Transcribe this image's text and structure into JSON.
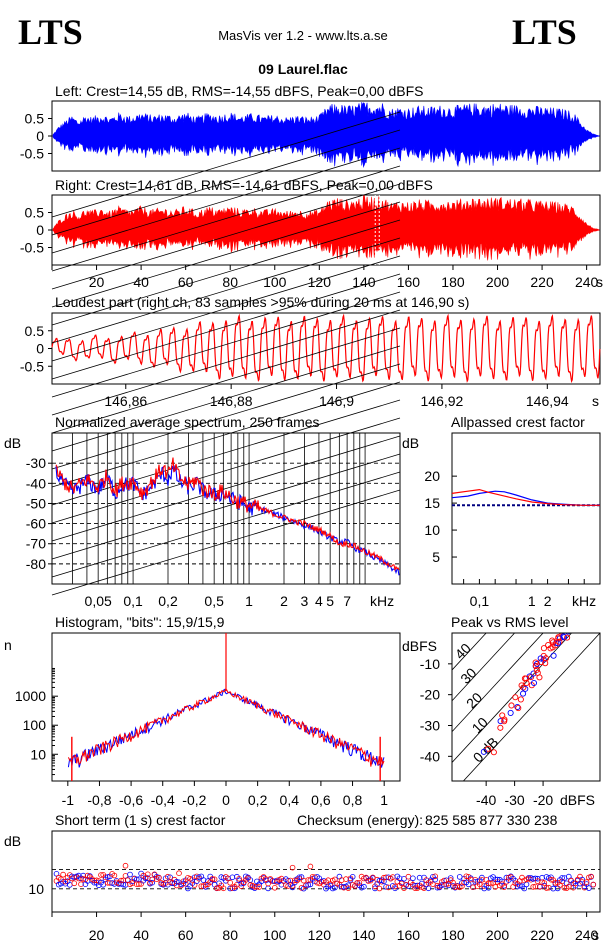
{
  "header": {
    "logo_left": "LTS",
    "logo_right": "LTS",
    "subtitle": "MasVis ver 1.2 - www.lts.a.se",
    "filename": "09 Laurel.flac"
  },
  "colors": {
    "left": "#0000ff",
    "right": "#ff0000",
    "background": "#ffffff",
    "axis": "#000000"
  },
  "chart_data": [
    {
      "id": "left",
      "type": "area",
      "title": "Left: Crest=14,55 dB, RMS=-14,55 dBFS, Peak=0,00 dBFS",
      "yticks": [
        "0.5",
        "0",
        "-0.5"
      ],
      "ylim": [
        -1,
        1
      ],
      "xlim": [
        0,
        246
      ],
      "envelope": [
        [
          0,
          0.0
        ],
        [
          3,
          0.28
        ],
        [
          6,
          0.45
        ],
        [
          9,
          0.6
        ],
        [
          12,
          0.45
        ],
        [
          15,
          0.62
        ],
        [
          18,
          0.55
        ],
        [
          22,
          0.66
        ],
        [
          26,
          0.55
        ],
        [
          30,
          0.68
        ],
        [
          35,
          0.58
        ],
        [
          40,
          0.7
        ],
        [
          45,
          0.6
        ],
        [
          50,
          0.66
        ],
        [
          55,
          0.58
        ],
        [
          60,
          0.7
        ],
        [
          65,
          0.55
        ],
        [
          70,
          0.68
        ],
        [
          75,
          0.62
        ],
        [
          80,
          0.7
        ],
        [
          85,
          0.6
        ],
        [
          90,
          0.66
        ],
        [
          95,
          0.58
        ],
        [
          100,
          0.62
        ],
        [
          105,
          0.55
        ],
        [
          110,
          0.6
        ],
        [
          115,
          0.55
        ],
        [
          120,
          0.6
        ],
        [
          124,
          0.9
        ],
        [
          128,
          0.95
        ],
        [
          132,
          0.88
        ],
        [
          136,
          0.92
        ],
        [
          139,
          0.98
        ],
        [
          142,
          1.0
        ],
        [
          145,
          0.98
        ],
        [
          148,
          1.0
        ],
        [
          152,
          0.8
        ],
        [
          156,
          0.86
        ],
        [
          160,
          0.82
        ],
        [
          165,
          0.88
        ],
        [
          170,
          0.85
        ],
        [
          175,
          0.9
        ],
        [
          180,
          0.86
        ],
        [
          185,
          0.92
        ],
        [
          190,
          0.95
        ],
        [
          195,
          0.93
        ],
        [
          200,
          0.96
        ],
        [
          205,
          0.92
        ],
        [
          210,
          0.9
        ],
        [
          215,
          0.88
        ],
        [
          220,
          0.85
        ],
        [
          225,
          0.82
        ],
        [
          230,
          0.78
        ],
        [
          234,
          0.7
        ],
        [
          237,
          0.45
        ],
        [
          240,
          0.2
        ],
        [
          243,
          0.06
        ],
        [
          246,
          0.0
        ]
      ]
    },
    {
      "id": "right",
      "type": "area",
      "title": "Right: Crest=14,61 dB, RMS=-14,61 dBFS, Peak=0,00 dBFS",
      "yticks": [
        "0.5",
        "0",
        "-0.5"
      ],
      "ylim": [
        -1,
        1
      ],
      "xlim": [
        0,
        246
      ],
      "xticks": [
        "20",
        "40",
        "60",
        "80",
        "100",
        "120",
        "140",
        "160",
        "180",
        "200",
        "220",
        "240"
      ],
      "x_unit": "s",
      "marker_time": 146.9,
      "envelope": [
        [
          0,
          0.0
        ],
        [
          3,
          0.28
        ],
        [
          6,
          0.45
        ],
        [
          9,
          0.6
        ],
        [
          12,
          0.45
        ],
        [
          15,
          0.62
        ],
        [
          18,
          0.55
        ],
        [
          22,
          0.66
        ],
        [
          26,
          0.55
        ],
        [
          30,
          0.68
        ],
        [
          35,
          0.58
        ],
        [
          40,
          0.7
        ],
        [
          45,
          0.6
        ],
        [
          50,
          0.66
        ],
        [
          55,
          0.58
        ],
        [
          60,
          0.7
        ],
        [
          65,
          0.55
        ],
        [
          70,
          0.68
        ],
        [
          75,
          0.62
        ],
        [
          80,
          0.7
        ],
        [
          85,
          0.6
        ],
        [
          90,
          0.66
        ],
        [
          95,
          0.58
        ],
        [
          100,
          0.62
        ],
        [
          105,
          0.55
        ],
        [
          110,
          0.6
        ],
        [
          115,
          0.55
        ],
        [
          120,
          0.6
        ],
        [
          124,
          0.9
        ],
        [
          128,
          0.95
        ],
        [
          132,
          0.88
        ],
        [
          136,
          0.92
        ],
        [
          139,
          0.98
        ],
        [
          142,
          1.0
        ],
        [
          145,
          0.98
        ],
        [
          148,
          1.0
        ],
        [
          152,
          0.8
        ],
        [
          156,
          0.86
        ],
        [
          160,
          0.82
        ],
        [
          165,
          0.88
        ],
        [
          170,
          0.85
        ],
        [
          175,
          0.9
        ],
        [
          180,
          0.86
        ],
        [
          185,
          0.92
        ],
        [
          190,
          0.95
        ],
        [
          195,
          0.93
        ],
        [
          200,
          0.96
        ],
        [
          205,
          0.92
        ],
        [
          210,
          0.9
        ],
        [
          215,
          0.88
        ],
        [
          220,
          0.85
        ],
        [
          225,
          0.82
        ],
        [
          230,
          0.78
        ],
        [
          234,
          0.7
        ],
        [
          237,
          0.45
        ],
        [
          240,
          0.2
        ],
        [
          243,
          0.06
        ],
        [
          246,
          0.0
        ]
      ]
    },
    {
      "id": "loudest",
      "type": "line",
      "title": "Loudest part (right ch, 83 samples >95% during 20 ms at 146,90 s)",
      "yticks": [
        "0.5",
        "0",
        "-0.5"
      ],
      "ylim": [
        -1,
        1
      ],
      "xlim": [
        146.846,
        146.95
      ],
      "xticks": [
        "146,86",
        "146,88",
        "146,9",
        "146,92",
        "146,94"
      ],
      "xtick_values": [
        146.86,
        146.88,
        146.9,
        146.92,
        146.94
      ],
      "x_unit": "s",
      "amplitude": [
        [
          146.846,
          0.25
        ],
        [
          146.86,
          0.4
        ],
        [
          146.872,
          0.7
        ],
        [
          146.88,
          0.95
        ],
        [
          146.95,
          0.95
        ]
      ],
      "cycles": 42
    },
    {
      "id": "spectrum",
      "type": "line",
      "title": "Normalized average spectrum, 250 frames",
      "ylabel": "dB",
      "yticks": [
        "-30",
        "-40",
        "-50",
        "-60",
        "-70",
        "-80"
      ],
      "ytick_values": [
        -30,
        -40,
        -50,
        -60,
        -70,
        -80
      ],
      "ylim": [
        -90,
        -15
      ],
      "xscale": "log",
      "xlim": [
        0.02,
        20
      ],
      "xticks": [
        "0,05",
        "0,1",
        "0,2",
        "0,5",
        "1",
        "2",
        "3",
        "4",
        "5",
        "7"
      ],
      "xtick_values": [
        0.05,
        0.1,
        0.2,
        0.5,
        1,
        2,
        3,
        4,
        5,
        7
      ],
      "x_unit": "kHz",
      "series": [
        {
          "name": "",
          "color": "#0000ff",
          "points": [
            [
              0.02,
              -32
            ],
            [
              0.025,
              -40
            ],
            [
              0.03,
              -44
            ],
            [
              0.04,
              -39
            ],
            [
              0.05,
              -43
            ],
            [
              0.06,
              -37
            ],
            [
              0.07,
              -45
            ],
            [
              0.08,
              -41
            ],
            [
              0.1,
              -40
            ],
            [
              0.12,
              -46
            ],
            [
              0.15,
              -40
            ],
            [
              0.18,
              -35
            ],
            [
              0.2,
              -38
            ],
            [
              0.22,
              -33
            ],
            [
              0.25,
              -39
            ],
            [
              0.3,
              -42
            ],
            [
              0.35,
              -40
            ],
            [
              0.4,
              -44
            ],
            [
              0.5,
              -46
            ],
            [
              0.6,
              -45
            ],
            [
              0.7,
              -48
            ],
            [
              0.8,
              -49
            ],
            [
              1,
              -52
            ],
            [
              1.3,
              -53
            ],
            [
              1.6,
              -55
            ],
            [
              2,
              -57
            ],
            [
              2.5,
              -59
            ],
            [
              3,
              -61
            ],
            [
              3.5,
              -62
            ],
            [
              4,
              -64
            ],
            [
              5,
              -67
            ],
            [
              6,
              -69
            ],
            [
              7,
              -69
            ],
            [
              8,
              -72
            ],
            [
              10,
              -74
            ],
            [
              12,
              -77
            ],
            [
              15,
              -80
            ],
            [
              20,
              -85
            ]
          ]
        },
        {
          "name": "",
          "color": "#ff0000",
          "points": [
            [
              0.02,
              -31
            ],
            [
              0.025,
              -39
            ],
            [
              0.03,
              -43
            ],
            [
              0.04,
              -38
            ],
            [
              0.05,
              -42
            ],
            [
              0.06,
              -36
            ],
            [
              0.07,
              -44
            ],
            [
              0.08,
              -40
            ],
            [
              0.1,
              -39
            ],
            [
              0.12,
              -45
            ],
            [
              0.15,
              -38
            ],
            [
              0.18,
              -32
            ],
            [
              0.2,
              -36
            ],
            [
              0.22,
              -31
            ],
            [
              0.25,
              -37
            ],
            [
              0.3,
              -41
            ],
            [
              0.35,
              -38
            ],
            [
              0.4,
              -43
            ],
            [
              0.5,
              -45
            ],
            [
              0.6,
              -44
            ],
            [
              0.7,
              -47
            ],
            [
              0.8,
              -49
            ],
            [
              1,
              -51
            ],
            [
              1.3,
              -53
            ],
            [
              1.6,
              -55
            ],
            [
              2,
              -57
            ],
            [
              2.5,
              -59
            ],
            [
              3,
              -60
            ],
            [
              3.5,
              -62
            ],
            [
              4,
              -63
            ],
            [
              5,
              -66
            ],
            [
              6,
              -70
            ],
            [
              7,
              -70
            ],
            [
              8,
              -71
            ],
            [
              10,
              -74
            ],
            [
              12,
              -76
            ],
            [
              15,
              -79
            ],
            [
              20,
              -84
            ]
          ]
        }
      ]
    },
    {
      "id": "crestfactor",
      "type": "line",
      "title": "Allpassed crest factor",
      "ylabel": "dB",
      "yticks": [
        "20",
        "15",
        "10",
        "5"
      ],
      "ytick_values": [
        20,
        15,
        10,
        5
      ],
      "ylim": [
        0,
        28
      ],
      "xscale": "log",
      "xlim": [
        0.03,
        20
      ],
      "xticks": [
        "0,1",
        "1",
        "2"
      ],
      "xtick_values": [
        0.1,
        1,
        2
      ],
      "x_unit": "kHz",
      "reference_level": 14.6,
      "series": [
        {
          "name": "",
          "color": "#0000ff",
          "points": [
            [
              0.03,
              16.0
            ],
            [
              0.06,
              16.3
            ],
            [
              0.1,
              16.8
            ],
            [
              0.2,
              17.2
            ],
            [
              0.3,
              17.1
            ],
            [
              0.5,
              16.5
            ],
            [
              1,
              15.6
            ],
            [
              2,
              15.0
            ],
            [
              4,
              14.8
            ],
            [
              10,
              14.6
            ],
            [
              20,
              14.6
            ]
          ]
        },
        {
          "name": "",
          "color": "#ff0000",
          "points": [
            [
              0.03,
              16.8
            ],
            [
              0.06,
              17.2
            ],
            [
              0.1,
              17.5
            ],
            [
              0.15,
              17.0
            ],
            [
              0.3,
              16.3
            ],
            [
              0.5,
              15.8
            ],
            [
              1,
              15.2
            ],
            [
              2,
              14.9
            ],
            [
              4,
              14.7
            ],
            [
              10,
              14.6
            ],
            [
              20,
              14.6
            ]
          ]
        }
      ]
    },
    {
      "id": "histogram",
      "type": "line",
      "title": "Histogram, \"bits\": 15,9/15,9",
      "ylabel": "n",
      "yscale": "log",
      "yticks": [
        "1000",
        "100",
        "10"
      ],
      "ytick_values": [
        1000,
        100,
        10
      ],
      "ylim": [
        1.2,
        150000
      ],
      "xlim": [
        -1.1,
        1.1
      ],
      "xticks": [
        "-1",
        "-0,8",
        "-0,6",
        "-0,4",
        "-0,2",
        "0",
        "0,2",
        "0,4",
        "0,6",
        "0,8",
        "1"
      ],
      "xtick_values": [
        -1,
        -0.8,
        -0.6,
        -0.4,
        -0.2,
        0,
        0.2,
        0.4,
        0.6,
        0.8,
        1
      ],
      "peak_count": 1500,
      "edge_count": 5,
      "clip_count": 40
    },
    {
      "id": "peakrms",
      "type": "scatter",
      "title": "Peak vs RMS level",
      "ylabel": "dBFS",
      "yticks": [
        "-10",
        "-20",
        "-30",
        "-40"
      ],
      "ytick_values": [
        -10,
        -20,
        -30,
        -40
      ],
      "ylim": [
        -48,
        0
      ],
      "xlim": [
        -52,
        0
      ],
      "xticks": [
        "-40",
        "-30",
        "-20"
      ],
      "xtick_values": [
        -40,
        -30,
        -20
      ],
      "x_unit": "dBFS",
      "diagonal_labels": [
        "40",
        "30",
        "20",
        "10",
        "0 dB"
      ],
      "diagonal_offsets": [
        40,
        30,
        20,
        10,
        0
      ],
      "points_approx": [
        [
          -39,
          -39
        ],
        [
          -35,
          -30
        ],
        [
          -33,
          -27
        ],
        [
          -30,
          -24
        ],
        [
          -28,
          -21
        ],
        [
          -26,
          -18
        ],
        [
          -25,
          -16
        ],
        [
          -24,
          -15
        ],
        [
          -23,
          -13
        ],
        [
          -22,
          -12
        ],
        [
          -21,
          -11
        ],
        [
          -20,
          -9
        ],
        [
          -19,
          -8
        ],
        [
          -18,
          -6
        ],
        [
          -17,
          -4
        ],
        [
          -16,
          -3
        ],
        [
          -15,
          -2
        ],
        [
          -14,
          -1
        ],
        [
          -13,
          0
        ],
        [
          -12,
          0
        ]
      ]
    },
    {
      "id": "shortterm",
      "type": "scatter",
      "title": "Short term (1 s) crest factor",
      "ylabel": "dB",
      "yticks": [
        "10"
      ],
      "ytick_values": [
        10
      ],
      "ylim": [
        4,
        25
      ],
      "xlim": [
        0,
        246
      ],
      "xticks": [
        "20",
        "40",
        "60",
        "80",
        "100",
        "120",
        "140",
        "160",
        "180",
        "200",
        "220",
        "240"
      ],
      "x_unit": "s",
      "reference_level": 15,
      "typical_level": 11.5
    }
  ],
  "checksum": {
    "label": "Checksum (energy):",
    "value": "825 585 877 330 238"
  }
}
